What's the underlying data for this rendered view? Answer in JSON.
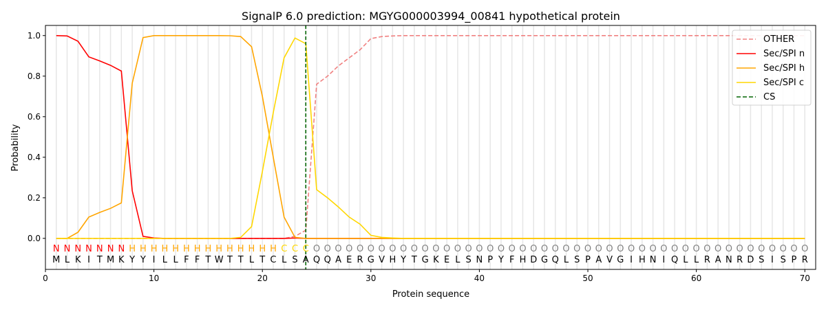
{
  "chart_data": {
    "type": "line",
    "title": "SignalP 6.0 prediction: MGYG000003994_00841 hypothetical protein",
    "xlabel": "Protein sequence",
    "ylabel": "Probability",
    "xlim": [
      0,
      71
    ],
    "ylim": [
      -0.153,
      1.05
    ],
    "xticks": [
      0,
      10,
      20,
      30,
      40,
      50,
      60,
      70
    ],
    "yticks": [
      "0.0",
      "0.2",
      "0.4",
      "0.6",
      "0.8",
      "1.0"
    ],
    "legend_position": "top-right",
    "sequence": [
      "M",
      "L",
      "K",
      "I",
      "T",
      "M",
      "K",
      "Y",
      "Y",
      "I",
      "L",
      "L",
      "F",
      "F",
      "T",
      "W",
      "T",
      "T",
      "L",
      "T",
      "C",
      "L",
      "S",
      "A",
      "Q",
      "Q",
      "A",
      "E",
      "R",
      "G",
      "V",
      "H",
      "Y",
      "T",
      "G",
      "K",
      "E",
      "L",
      "S",
      "N",
      "P",
      "Y",
      "F",
      "H",
      "D",
      "G",
      "Q",
      "L",
      "S",
      "P",
      "A",
      "V",
      "G",
      "I",
      "H",
      "N",
      "I",
      "Q",
      "L",
      "L",
      "R",
      "A",
      "N",
      "R",
      "D",
      "S",
      "I",
      "S",
      "P",
      "R"
    ],
    "region_labels": [
      "N",
      "N",
      "N",
      "N",
      "N",
      "N",
      "N",
      "H",
      "H",
      "H",
      "H",
      "H",
      "H",
      "H",
      "H",
      "H",
      "H",
      "H",
      "H",
      "H",
      "H",
      "C",
      "C",
      "C",
      "O",
      "O",
      "O",
      "O",
      "O",
      "O",
      "O",
      "O",
      "O",
      "O",
      "O",
      "O",
      "O",
      "O",
      "O",
      "O",
      "O",
      "O",
      "O",
      "O",
      "O",
      "O",
      "O",
      "O",
      "O",
      "O",
      "O",
      "O",
      "O",
      "O",
      "O",
      "O",
      "O",
      "O",
      "O",
      "O",
      "O",
      "O",
      "O",
      "O",
      "O",
      "O",
      "O",
      "O",
      "O",
      "O"
    ],
    "region_colors": {
      "N": "#ff0000",
      "H": "#ffa500",
      "C": "#ffd700",
      "O": "#808080"
    },
    "series": [
      {
        "name": "OTHER",
        "color": "#f08080",
        "dash": "dashed",
        "values": [
          0,
          0,
          0,
          0,
          0,
          0,
          0,
          0,
          0,
          0,
          0,
          0,
          0,
          0,
          0,
          0,
          0,
          0,
          0,
          0,
          0,
          0,
          0.01,
          0.04,
          0.76,
          0.8,
          0.85,
          0.89,
          0.93,
          0.985,
          0.995,
          0.998,
          1,
          1,
          1,
          1,
          1,
          1,
          1,
          1,
          1,
          1,
          1,
          1,
          1,
          1,
          1,
          1,
          1,
          1,
          1,
          1,
          1,
          1,
          1,
          1,
          1,
          1,
          1,
          1,
          1,
          1,
          1,
          1,
          1,
          1,
          1,
          1,
          1,
          1
        ]
      },
      {
        "name": "Sec/SPI n",
        "color": "#ff0000",
        "dash": "solid",
        "values": [
          1.0,
          0.998,
          0.972,
          0.895,
          0.875,
          0.853,
          0.825,
          0.235,
          0.01,
          0.002,
          0,
          0,
          0,
          0,
          0,
          0,
          0,
          0,
          0,
          0,
          0,
          0,
          0.002,
          0,
          0,
          0,
          0,
          0,
          0,
          0,
          0,
          0,
          0,
          0,
          0,
          0,
          0,
          0,
          0,
          0,
          0,
          0,
          0,
          0,
          0,
          0,
          0,
          0,
          0,
          0,
          0,
          0,
          0,
          0,
          0,
          0,
          0,
          0,
          0,
          0,
          0,
          0,
          0,
          0,
          0,
          0,
          0,
          0,
          0,
          0
        ]
      },
      {
        "name": "Sec/SPI h",
        "color": "#ffa500",
        "dash": "solid",
        "values": [
          0,
          0,
          0.03,
          0.105,
          0.128,
          0.148,
          0.175,
          0.765,
          0.99,
          1.0,
          1.0,
          1.0,
          1.0,
          1.0,
          1.0,
          1.0,
          0.999,
          0.995,
          0.945,
          0.7,
          0.4,
          0.105,
          0.005,
          0,
          0,
          0,
          0,
          0,
          0,
          0,
          0,
          0,
          0,
          0,
          0,
          0,
          0,
          0,
          0,
          0,
          0,
          0,
          0,
          0,
          0,
          0,
          0,
          0,
          0,
          0,
          0,
          0,
          0,
          0,
          0,
          0,
          0,
          0,
          0,
          0,
          0,
          0,
          0,
          0,
          0,
          0,
          0,
          0,
          0,
          0
        ]
      },
      {
        "name": "Sec/SPI c",
        "color": "#ffd700",
        "dash": "solid",
        "values": [
          0,
          0,
          0,
          0,
          0,
          0,
          0,
          0,
          0,
          0,
          0,
          0,
          0,
          0,
          0,
          0,
          0,
          0.005,
          0.058,
          0.33,
          0.62,
          0.89,
          0.988,
          0.96,
          0.24,
          0.2,
          0.155,
          0.105,
          0.07,
          0.015,
          0.005,
          0.002,
          0,
          0,
          0,
          0,
          0,
          0,
          0,
          0,
          0,
          0,
          0,
          0,
          0,
          0,
          0,
          0,
          0,
          0,
          0,
          0,
          0,
          0,
          0,
          0,
          0,
          0,
          0,
          0,
          0,
          0,
          0,
          0,
          0,
          0,
          0,
          0,
          0,
          0
        ]
      }
    ],
    "cs": {
      "name": "CS",
      "position": 24,
      "color": "#006400"
    }
  }
}
